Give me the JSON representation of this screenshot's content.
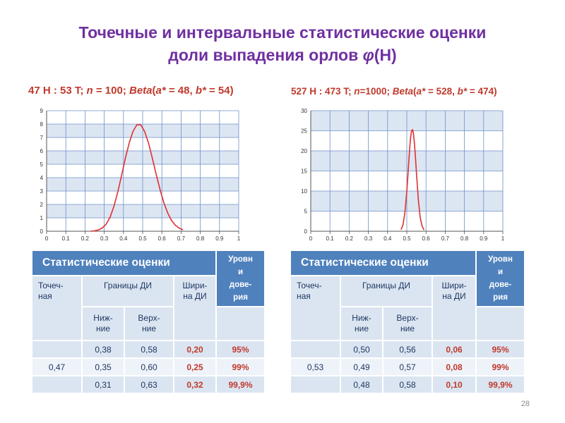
{
  "slide": {
    "title_line1": "Точечные и интервальные статистические оценки",
    "title_line2_pre": "доли выпадения орлов ",
    "title_phi": "φ",
    "title_line2_post": "(Н)",
    "page_number": "28"
  },
  "left": {
    "subtitle_parts": [
      "47 H : 53 T; ",
      "n",
      " = 100; ",
      "Beta",
      "(",
      "a*",
      " = 48, ",
      "b*",
      " = 54)"
    ]
  },
  "right": {
    "subtitle_parts": [
      "527 H : 473 T; ",
      "n",
      "=1000; ",
      "Beta",
      "(",
      "a*",
      " = 528, ",
      "b*",
      " = 474)"
    ]
  },
  "chart_data": [
    {
      "type": "line",
      "series": [
        {
          "color": "#e03030",
          "x": [
            0.23,
            0.25,
            0.27,
            0.29,
            0.31,
            0.33,
            0.35,
            0.37,
            0.39,
            0.41,
            0.43,
            0.45,
            0.47,
            0.49,
            0.51,
            0.53,
            0.55,
            0.57,
            0.59,
            0.61,
            0.63,
            0.65,
            0.67,
            0.69,
            0.71
          ],
          "y": [
            0.0,
            0.03,
            0.1,
            0.24,
            0.53,
            1.04,
            1.83,
            2.9,
            4.15,
            5.44,
            6.6,
            7.47,
            7.95,
            7.94,
            7.46,
            6.6,
            5.48,
            4.28,
            3.13,
            2.14,
            1.37,
            0.81,
            0.45,
            0.23,
            0.11
          ]
        }
      ],
      "x_ticks": [
        "0",
        "0.1",
        "0.2",
        "0.3",
        "0.4",
        "0.5",
        "0.6",
        "0.7",
        "0.8",
        "0.9",
        "1"
      ],
      "y_ticks": [
        "0",
        "1",
        "2",
        "3",
        "4",
        "5",
        "6",
        "7",
        "8",
        "9"
      ],
      "xlim": [
        0,
        1
      ],
      "ylim": [
        0,
        9
      ],
      "grid": true
    },
    {
      "type": "line",
      "series": [
        {
          "color": "#e03030",
          "x": [
            0.47,
            0.48,
            0.49,
            0.5,
            0.505,
            0.51,
            0.515,
            0.52,
            0.525,
            0.53,
            0.535,
            0.54,
            0.545,
            0.55,
            0.56,
            0.57,
            0.58,
            0.59
          ],
          "y": [
            0.4,
            1.6,
            4.6,
            9.9,
            13.4,
            17.0,
            20.6,
            23.4,
            25.0,
            25.3,
            24.2,
            21.7,
            18.5,
            14.7,
            7.9,
            3.4,
            1.2,
            0.3
          ]
        }
      ],
      "x_ticks": [
        "0",
        "0.1",
        "0.2",
        "0.3",
        "0.4",
        "0.5",
        "0.6",
        "0.7",
        "0.8",
        "0.9",
        "1"
      ],
      "y_ticks": [
        "0",
        "5",
        "10",
        "15",
        "20",
        "25",
        "30"
      ],
      "xlim": [
        0,
        1
      ],
      "ylim": [
        0,
        30
      ],
      "grid": true
    }
  ],
  "tables": {
    "left": {
      "header_main": "Статистические оценки",
      "header_level": [
        "Уровн",
        "и",
        "дове-",
        "рия"
      ],
      "col_point": [
        "Точеч-",
        "ная"
      ],
      "col_bounds": "Границы ДИ",
      "col_lower": [
        "Ниж-",
        "ние"
      ],
      "col_upper": [
        "Верх-",
        "ние"
      ],
      "col_width": [
        "Шири-",
        "на ДИ"
      ],
      "point_value": "0,47",
      "rows": [
        [
          "0,38",
          "0,58",
          "0,20",
          "95%"
        ],
        [
          "0,35",
          "0,60",
          "0,25",
          "99%"
        ],
        [
          "0,31",
          "0,63",
          "0,32",
          "99,9%"
        ]
      ]
    },
    "right": {
      "header_main": "Статистические оценки",
      "header_level": [
        "Уровн",
        "и",
        "дове-",
        "рия"
      ],
      "col_point": [
        "Точеч-",
        "ная"
      ],
      "col_bounds": "Границы ДИ",
      "col_lower": [
        "Ниж-",
        "ние"
      ],
      "col_upper": [
        "Верх-",
        "ние"
      ],
      "col_width": [
        "Шири-",
        "на ДИ"
      ],
      "point_value": "0,53",
      "rows": [
        [
          "0,50",
          "0,56",
          "0,06",
          "95%"
        ],
        [
          "0,49",
          "0,57",
          "0,08",
          "99%"
        ],
        [
          "0,48",
          "0,58",
          "0,10",
          "99,9%"
        ]
      ]
    }
  }
}
